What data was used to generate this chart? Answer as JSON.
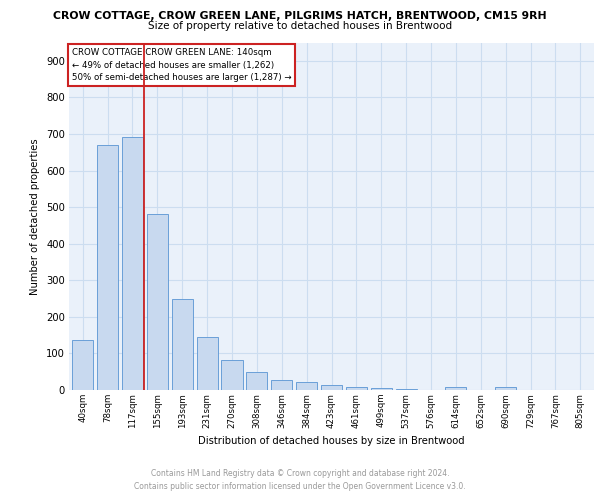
{
  "title_line1": "CROW COTTAGE, CROW GREEN LANE, PILGRIMS HATCH, BRENTWOOD, CM15 9RH",
  "title_line2": "Size of property relative to detached houses in Brentwood",
  "xlabel": "Distribution of detached houses by size in Brentwood",
  "ylabel": "Number of detached properties",
  "categories": [
    "40sqm",
    "78sqm",
    "117sqm",
    "155sqm",
    "193sqm",
    "231sqm",
    "270sqm",
    "308sqm",
    "346sqm",
    "384sqm",
    "423sqm",
    "461sqm",
    "499sqm",
    "537sqm",
    "576sqm",
    "614sqm",
    "652sqm",
    "690sqm",
    "729sqm",
    "767sqm",
    "805sqm"
  ],
  "values": [
    137,
    670,
    693,
    481,
    248,
    145,
    82,
    50,
    26,
    21,
    13,
    9,
    5,
    4,
    1,
    8,
    0,
    8,
    0,
    0,
    0
  ],
  "bar_color": "#c8d9ef",
  "bar_edge_color": "#6a9fd8",
  "marker_label": "CROW COTTAGE CROW GREEN LANE: 140sqm",
  "marker_sub1": "← 49% of detached houses are smaller (1,262)",
  "marker_sub2": "50% of semi-detached houses are larger (1,287) →",
  "marker_line_color": "#cc2222",
  "annotation_box_edge_color": "#cc2222",
  "grid_color": "#ccddf0",
  "background_color": "#eaf1fa",
  "ylim": [
    0,
    950
  ],
  "yticks": [
    0,
    100,
    200,
    300,
    400,
    500,
    600,
    700,
    800,
    900
  ],
  "footer_line1": "Contains HM Land Registry data © Crown copyright and database right 2024.",
  "footer_line2": "Contains public sector information licensed under the Open Government Licence v3.0."
}
